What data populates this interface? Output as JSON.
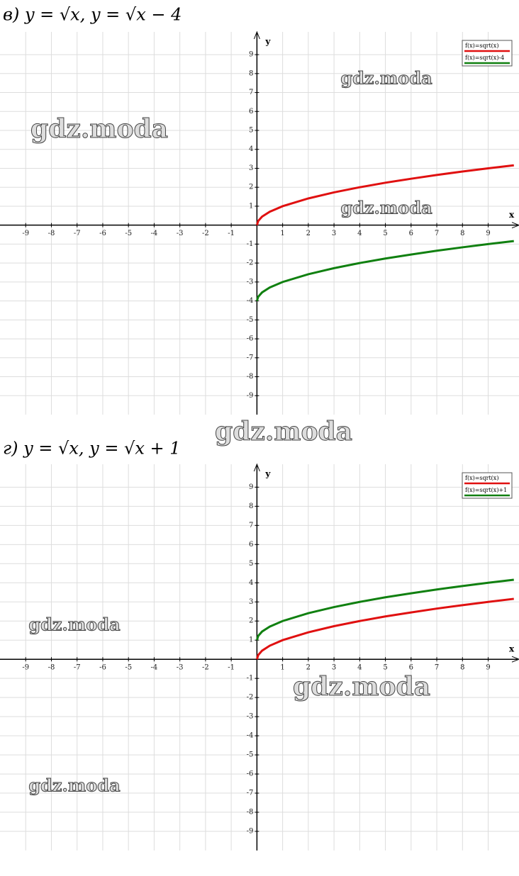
{
  "chart_data": [
    {
      "type": "line",
      "title": "в) y = √x,      y = √x − 4",
      "xlabel": "x",
      "ylabel": "y",
      "x": [
        0,
        0.05,
        0.2,
        0.5,
        1,
        2,
        3,
        4,
        5,
        6,
        7,
        8,
        9,
        10
      ],
      "series": [
        {
          "name": "f(x)=sqrt(x)",
          "color": "#e01010",
          "values": [
            0,
            0.22,
            0.45,
            0.71,
            1,
            1.41,
            1.73,
            2,
            2.24,
            2.45,
            2.65,
            2.83,
            3,
            3.16
          ]
        },
        {
          "name": "f(x)=sqrt(x)-4",
          "color": "#108010",
          "values": [
            -4,
            -3.78,
            -3.55,
            -3.29,
            -3,
            -2.59,
            -2.27,
            -2,
            -1.76,
            -1.55,
            -1.35,
            -1.17,
            -1,
            -0.84
          ]
        }
      ],
      "xlim": [
        -10,
        10.2
      ],
      "ylim": [
        -10,
        10.2
      ],
      "xticks": [
        -9,
        -8,
        -7,
        -6,
        -5,
        -4,
        -3,
        -2,
        -1,
        1,
        2,
        3,
        4,
        5,
        6,
        7,
        8,
        9
      ],
      "yticks": [
        -9,
        -8,
        -7,
        -6,
        -5,
        -4,
        -3,
        -2,
        -1,
        1,
        2,
        3,
        4,
        5,
        6,
        7,
        8,
        9
      ],
      "grid": true,
      "legend": "upper right",
      "watermarks": [
        "gdz.moda",
        "gdz.moda",
        "gdz.moda",
        "gdz.moda"
      ]
    },
    {
      "type": "line",
      "title": "г) y = √x,      y = √x + 1",
      "xlabel": "x",
      "ylabel": "y",
      "x": [
        0,
        0.05,
        0.2,
        0.5,
        1,
        2,
        3,
        4,
        5,
        6,
        7,
        8,
        9,
        10
      ],
      "series": [
        {
          "name": "f(x)=sqrt(x)",
          "color": "#e01010",
          "values": [
            0,
            0.22,
            0.45,
            0.71,
            1,
            1.41,
            1.73,
            2,
            2.24,
            2.45,
            2.65,
            2.83,
            3,
            3.16
          ]
        },
        {
          "name": "f(x)=sqrt(x)+1",
          "color": "#108010",
          "values": [
            1,
            1.22,
            1.45,
            1.71,
            2,
            2.41,
            2.73,
            3,
            3.24,
            3.45,
            3.65,
            3.83,
            4,
            4.16
          ]
        }
      ],
      "xlim": [
        -10,
        10.2
      ],
      "ylim": [
        -10,
        10.2
      ],
      "xticks": [
        -9,
        -8,
        -7,
        -6,
        -5,
        -4,
        -3,
        -2,
        -1,
        1,
        2,
        3,
        4,
        5,
        6,
        7,
        8,
        9
      ],
      "yticks": [
        -9,
        -8,
        -7,
        -6,
        -5,
        -4,
        -3,
        -2,
        -1,
        1,
        2,
        3,
        4,
        5,
        6,
        7,
        8,
        9
      ],
      "grid": true,
      "legend": "upper right",
      "watermarks": [
        "gdz.moda",
        "gdz.moda",
        "gdz.moda"
      ]
    }
  ]
}
